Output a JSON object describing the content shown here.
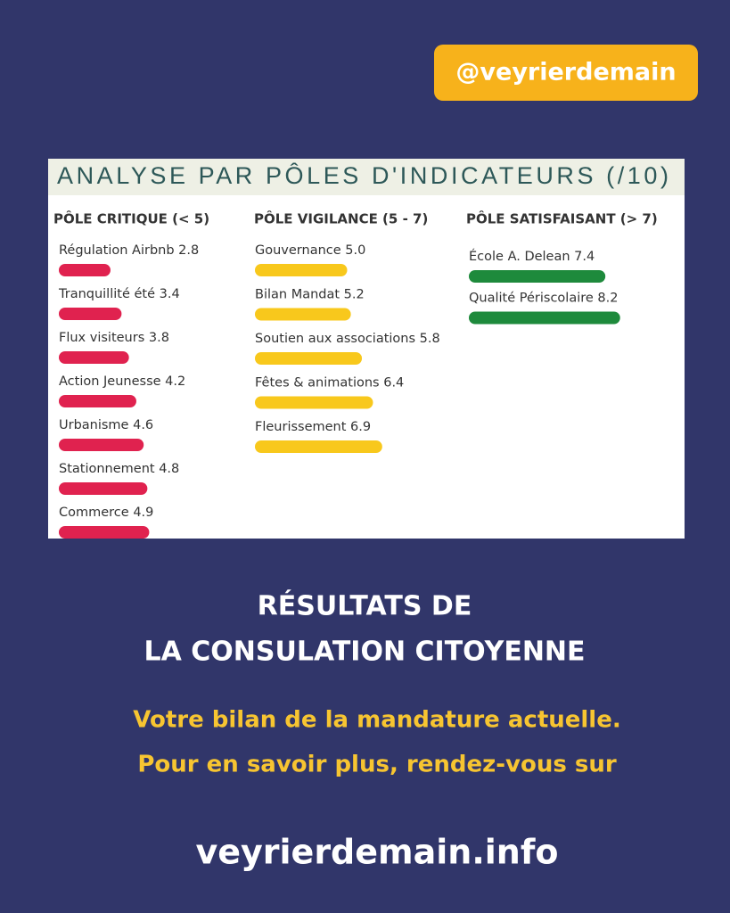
{
  "handle": "@veyrierdemain",
  "chart_data": {
    "type": "bar",
    "title": "ANALYSE PAR PÔLES D'INDICATEURS (/10)",
    "groups": [
      {
        "name": "PÔLE CRITIQUE (< 5)",
        "color": "#e0224f",
        "categories": [
          "Régulation Airbnb",
          "Tranquillité été",
          "Flux visiteurs",
          "Action Jeunesse",
          "Urbanisme",
          "Stationnement",
          "Commerce"
        ],
        "values": [
          2.8,
          3.4,
          3.8,
          4.2,
          4.6,
          4.8,
          4.9
        ],
        "value_labels": [
          "2.8",
          "3.4",
          "3.8",
          "4.2",
          "4.6",
          "4.8",
          "4.9"
        ]
      },
      {
        "name": "PÔLE VIGILANCE (5 - 7)",
        "color": "#f8c81c",
        "categories": [
          "Gouvernance",
          "Bilan Mandat",
          "Soutien aux associations",
          "Fêtes & animations",
          "Fleurissement"
        ],
        "values": [
          5.0,
          5.2,
          5.8,
          6.4,
          6.9
        ],
        "value_labels": [
          "5.0",
          "5.2",
          "5.8",
          "6.4",
          "6.9"
        ]
      },
      {
        "name": "PÔLE SATISFAISANT (> 7)",
        "color": "#1e8a3c",
        "categories": [
          "École A. Delean",
          "Qualité Périscolaire"
        ],
        "values": [
          7.4,
          8.2
        ],
        "value_labels": [
          "7.4",
          "8.2"
        ]
      }
    ]
  },
  "headline": [
    "RÉSULTATS DE",
    "LA CONSULATION CITOYENNE"
  ],
  "subtitle": [
    "Votre bilan de la mandature actuelle.",
    "Pour en savoir plus, rendez-vous sur"
  ],
  "url": "veyrierdemain.info"
}
